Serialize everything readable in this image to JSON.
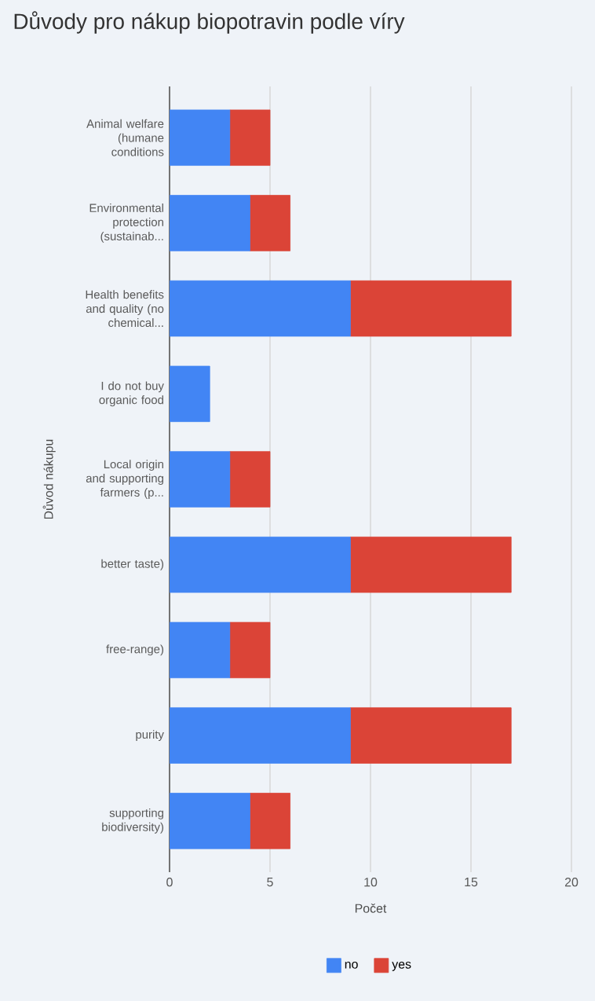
{
  "chart_data": {
    "type": "bar",
    "orientation": "horizontal",
    "stacked": true,
    "title": "Důvody pro nákup biopotravin podle víry",
    "xlabel": "Počet",
    "ylabel": "Důvod nákupu",
    "categories": [
      "Animal welfare (humane conditions",
      "Environmental protection (sustainab...",
      "Health benefits and quality (no chemical...",
      "I do not buy organic food",
      "Local origin and supporting farmers (p...",
      "better taste)",
      "free-range)",
      "purity",
      "supporting biodiversity)"
    ],
    "series": [
      {
        "name": "no",
        "color": "#4285f4",
        "values": [
          3,
          4,
          9,
          2,
          3,
          9,
          3,
          9,
          4
        ]
      },
      {
        "name": "yes",
        "color": "#db4437",
        "values": [
          2,
          2,
          8,
          0,
          2,
          8,
          2,
          8,
          2
        ]
      }
    ],
    "xlim": [
      0,
      20
    ],
    "xticks": [
      0,
      5,
      10,
      15,
      20
    ],
    "grid": "x",
    "legend": "bottom"
  }
}
